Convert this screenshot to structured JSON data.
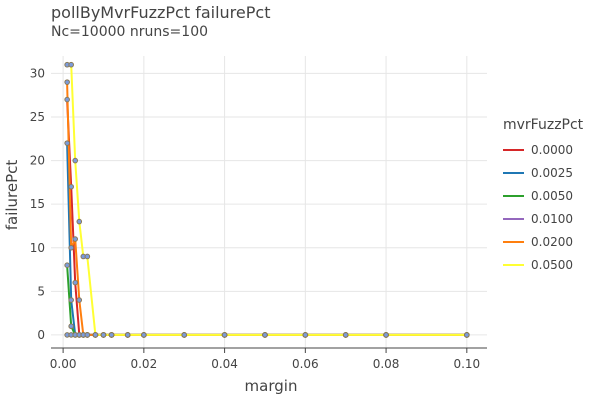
{
  "chart_data": {
    "type": "line",
    "title": "pollByMvrFuzzPct failurePct",
    "subtitle": "Nc=10000 nruns=100",
    "xlabel": "margin",
    "ylabel": "failurePct",
    "xlim": [
      -0.003,
      0.105
    ],
    "ylim": [
      -1.5,
      32
    ],
    "xticks": [
      0,
      0.02,
      0.04,
      0.06,
      0.08,
      0.1
    ],
    "xtick_labels": [
      "0.00",
      "0.02",
      "0.04",
      "0.06",
      "0.08",
      "0.10"
    ],
    "yticks": [
      0,
      5,
      10,
      15,
      20,
      25,
      30
    ],
    "ytick_labels": [
      "0",
      "5",
      "10",
      "15",
      "20",
      "25",
      "30"
    ],
    "grid": true,
    "legend_title": "mvrFuzzPct",
    "legend_position": "right",
    "x": [
      0.001,
      0.002,
      0.003,
      0.004,
      0.005,
      0.006,
      0.008,
      0.01,
      0.012,
      0.016,
      0.02,
      0.03,
      0.04,
      0.05,
      0.06,
      0.07,
      0.08,
      0.1
    ],
    "series": [
      {
        "name": "0.0000",
        "color": "#d62728",
        "values": [
          27,
          17,
          6,
          0,
          0,
          0,
          0,
          0,
          0,
          0,
          0,
          0,
          0,
          0,
          0,
          0,
          0,
          0
        ]
      },
      {
        "name": "0.0025",
        "color": "#1f77b4",
        "values": [
          22,
          4,
          0,
          0,
          0,
          0,
          0,
          0,
          0,
          0,
          0,
          0,
          0,
          0,
          0,
          0,
          0,
          0
        ]
      },
      {
        "name": "0.0050",
        "color": "#2ca02c",
        "values": [
          8,
          1,
          0,
          0,
          0,
          0,
          0,
          0,
          0,
          0,
          0,
          0,
          0,
          0,
          0,
          0,
          0,
          0
        ]
      },
      {
        "name": "0.0100",
        "color": "#9467bd",
        "values": [
          0,
          0,
          0,
          0,
          0,
          0,
          0,
          0,
          0,
          0,
          0,
          0,
          0,
          0,
          0,
          0,
          0,
          0
        ]
      },
      {
        "name": "0.0200",
        "color": "#ff7f0e",
        "values": [
          29,
          10,
          11,
          4,
          0,
          0,
          0,
          0,
          0,
          0,
          0,
          0,
          0,
          0,
          0,
          0,
          0,
          0
        ]
      },
      {
        "name": "0.0500",
        "color": "#ffff33",
        "values": [
          31,
          31,
          20,
          13,
          9,
          9,
          0,
          0,
          0,
          0,
          0,
          0,
          0,
          0,
          0,
          0,
          0,
          0
        ]
      }
    ],
    "marker_fill": "#7b9bdc",
    "marker_stroke": "#8a7a55"
  }
}
